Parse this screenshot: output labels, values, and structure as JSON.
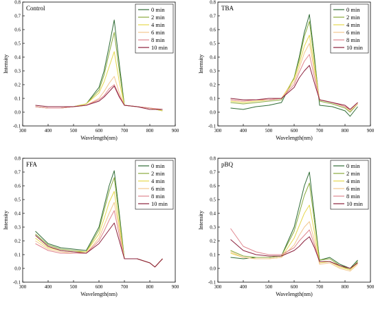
{
  "colors": {
    "0 min": "#2e6b35",
    "2 min": "#8aaa3c",
    "4 min": "#e6d84e",
    "6 min": "#f2c78e",
    "8 min": "#e0868f",
    "10 min": "#8a1e3a"
  },
  "chart_data": [
    {
      "type": "line",
      "title": "Control",
      "xlabel": "Wavelength(nm)",
      "ylabel": "Intensity",
      "xlim": [
        300,
        900
      ],
      "ylim": [
        -0.1,
        0.8
      ],
      "x_ticks": [
        300,
        400,
        500,
        600,
        700,
        800,
        900
      ],
      "y_ticks": [
        -0.1,
        0.0,
        0.1,
        0.2,
        0.3,
        0.4,
        0.5,
        0.6,
        0.7,
        0.8
      ],
      "legend_position": "top-right",
      "grid": false,
      "x": [
        350,
        400,
        450,
        500,
        550,
        600,
        620,
        640,
        660,
        680,
        700,
        750,
        800,
        850
      ],
      "series": [
        {
          "name": "0 min",
          "values": [
            0.04,
            0.03,
            0.03,
            0.04,
            0.06,
            0.18,
            0.3,
            0.48,
            0.67,
            0.35,
            0.05,
            0.04,
            0.03,
            0.01
          ]
        },
        {
          "name": "2 min",
          "values": [
            0.04,
            0.03,
            0.03,
            0.04,
            0.06,
            0.16,
            0.27,
            0.43,
            0.58,
            0.3,
            0.05,
            0.04,
            0.03,
            0.01
          ]
        },
        {
          "name": "4 min",
          "values": [
            0.04,
            0.03,
            0.03,
            0.04,
            0.06,
            0.14,
            0.22,
            0.33,
            0.44,
            0.22,
            0.05,
            0.04,
            0.03,
            0.01
          ]
        },
        {
          "name": "6 min",
          "values": [
            0.04,
            0.03,
            0.03,
            0.04,
            0.05,
            0.1,
            0.15,
            0.21,
            0.26,
            0.14,
            0.05,
            0.04,
            0.03,
            0.02
          ]
        },
        {
          "name": "8 min",
          "values": [
            0.04,
            0.03,
            0.03,
            0.04,
            0.05,
            0.09,
            0.12,
            0.17,
            0.2,
            0.12,
            0.05,
            0.04,
            0.03,
            0.02
          ]
        },
        {
          "name": "10 min",
          "values": [
            0.05,
            0.04,
            0.04,
            0.04,
            0.05,
            0.08,
            0.11,
            0.15,
            0.19,
            0.11,
            0.05,
            0.04,
            0.02,
            0.02
          ]
        }
      ]
    },
    {
      "type": "line",
      "title": "TBA",
      "xlabel": "Wavelength(nm)",
      "ylabel": "Intensity",
      "xlim": [
        300,
        900
      ],
      "ylim": [
        -0.1,
        0.8
      ],
      "x_ticks": [
        300,
        400,
        500,
        600,
        700,
        800,
        900
      ],
      "y_ticks": [
        -0.1,
        0.0,
        0.1,
        0.2,
        0.3,
        0.4,
        0.5,
        0.6,
        0.7,
        0.8
      ],
      "legend_position": "top-right",
      "grid": false,
      "x": [
        350,
        400,
        450,
        500,
        550,
        600,
        620,
        640,
        660,
        680,
        700,
        750,
        800,
        820,
        850
      ],
      "series": [
        {
          "name": "0 min",
          "values": [
            0.03,
            0.02,
            0.04,
            0.05,
            0.07,
            0.25,
            0.4,
            0.58,
            0.71,
            0.4,
            0.05,
            0.04,
            0.01,
            -0.03,
            0.04
          ]
        },
        {
          "name": "2 min",
          "values": [
            0.07,
            0.06,
            0.07,
            0.08,
            0.09,
            0.25,
            0.38,
            0.55,
            0.66,
            0.37,
            0.08,
            0.06,
            0.03,
            0.0,
            0.06
          ]
        },
        {
          "name": "4 min",
          "values": [
            0.08,
            0.07,
            0.08,
            0.09,
            0.1,
            0.24,
            0.35,
            0.48,
            0.56,
            0.32,
            0.09,
            0.07,
            0.04,
            0.01,
            0.06
          ]
        },
        {
          "name": "6 min",
          "values": [
            0.09,
            0.08,
            0.09,
            0.09,
            0.1,
            0.22,
            0.32,
            0.43,
            0.5,
            0.29,
            0.09,
            0.07,
            0.04,
            0.01,
            0.06
          ]
        },
        {
          "name": "8 min",
          "values": [
            0.09,
            0.08,
            0.09,
            0.09,
            0.1,
            0.2,
            0.29,
            0.37,
            0.42,
            0.25,
            0.09,
            0.07,
            0.04,
            0.02,
            0.07
          ]
        },
        {
          "name": "10 min",
          "values": [
            0.1,
            0.09,
            0.09,
            0.1,
            0.1,
            0.18,
            0.25,
            0.3,
            0.34,
            0.21,
            0.09,
            0.07,
            0.05,
            0.02,
            0.07
          ]
        }
      ]
    },
    {
      "type": "line",
      "title": "FFA",
      "xlabel": "Wavelength(nm)",
      "ylabel": "Intensity",
      "xlim": [
        300,
        900
      ],
      "ylim": [
        -0.1,
        0.8
      ],
      "x_ticks": [
        300,
        400,
        500,
        600,
        700,
        800,
        900
      ],
      "y_ticks": [
        -0.1,
        0.0,
        0.1,
        0.2,
        0.3,
        0.4,
        0.5,
        0.6,
        0.7,
        0.8
      ],
      "legend_position": "top-right",
      "grid": false,
      "x": [
        350,
        400,
        450,
        500,
        550,
        600,
        620,
        640,
        660,
        680,
        700,
        750,
        800,
        820,
        850
      ],
      "series": [
        {
          "name": "0 min",
          "values": [
            0.27,
            0.18,
            0.15,
            0.14,
            0.13,
            0.3,
            0.45,
            0.6,
            0.71,
            0.4,
            0.07,
            0.07,
            0.04,
            0.01,
            0.07
          ]
        },
        {
          "name": "2 min",
          "values": [
            0.25,
            0.17,
            0.14,
            0.13,
            0.12,
            0.28,
            0.42,
            0.56,
            0.66,
            0.37,
            0.07,
            0.07,
            0.04,
            0.01,
            0.07
          ]
        },
        {
          "name": "4 min",
          "values": [
            0.22,
            0.15,
            0.13,
            0.12,
            0.12,
            0.25,
            0.36,
            0.48,
            0.56,
            0.31,
            0.07,
            0.07,
            0.04,
            0.01,
            0.07
          ]
        },
        {
          "name": "6 min",
          "values": [
            0.2,
            0.14,
            0.12,
            0.11,
            0.11,
            0.22,
            0.31,
            0.4,
            0.48,
            0.28,
            0.07,
            0.07,
            0.04,
            0.01,
            0.07
          ]
        },
        {
          "name": "8 min",
          "values": [
            0.18,
            0.13,
            0.11,
            0.11,
            0.11,
            0.2,
            0.27,
            0.35,
            0.42,
            0.24,
            0.07,
            0.07,
            0.04,
            0.01,
            0.07
          ]
        },
        {
          "name": "10 min",
          "values": [
            0.24,
            0.16,
            0.13,
            0.12,
            0.11,
            0.18,
            0.23,
            0.28,
            0.33,
            0.2,
            0.07,
            0.07,
            0.04,
            0.01,
            0.07
          ]
        }
      ]
    },
    {
      "type": "line",
      "title": "pBQ",
      "xlabel": "Wavelength(nm)",
      "ylabel": "Intensity",
      "xlim": [
        300,
        900
      ],
      "ylim": [
        -0.1,
        0.8
      ],
      "x_ticks": [
        300,
        400,
        500,
        600,
        700,
        800,
        900
      ],
      "y_ticks": [
        -0.1,
        0.0,
        0.1,
        0.2,
        0.3,
        0.4,
        0.5,
        0.6,
        0.7,
        0.8
      ],
      "legend_position": "top-right",
      "grid": false,
      "x": [
        350,
        400,
        450,
        500,
        550,
        600,
        620,
        640,
        660,
        680,
        700,
        740,
        780,
        820,
        850
      ],
      "series": [
        {
          "name": "0 min",
          "values": [
            0.08,
            0.07,
            0.08,
            0.08,
            0.09,
            0.3,
            0.45,
            0.6,
            0.7,
            0.38,
            0.06,
            0.08,
            0.03,
            0.0,
            0.06
          ]
        },
        {
          "name": "2 min",
          "values": [
            0.13,
            0.09,
            0.08,
            0.08,
            0.09,
            0.27,
            0.4,
            0.53,
            0.62,
            0.34,
            0.06,
            0.07,
            0.02,
            -0.01,
            0.05
          ]
        },
        {
          "name": "4 min",
          "values": [
            0.11,
            0.08,
            0.07,
            0.07,
            0.08,
            0.22,
            0.31,
            0.4,
            0.46,
            0.26,
            0.04,
            0.05,
            0.01,
            -0.01,
            0.04
          ]
        },
        {
          "name": "6 min",
          "values": [
            0.12,
            0.08,
            0.07,
            0.07,
            0.08,
            0.17,
            0.24,
            0.3,
            0.34,
            0.2,
            0.03,
            0.04,
            0.0,
            -0.02,
            0.03
          ]
        },
        {
          "name": "8 min",
          "values": [
            0.29,
            0.16,
            0.12,
            0.1,
            0.1,
            0.15,
            0.2,
            0.24,
            0.28,
            0.17,
            0.05,
            0.05,
            0.02,
            0.0,
            0.04
          ]
        },
        {
          "name": "10 min",
          "values": [
            0.21,
            0.13,
            0.1,
            0.09,
            0.09,
            0.13,
            0.16,
            0.2,
            0.23,
            0.15,
            0.05,
            0.05,
            0.02,
            0.0,
            0.04
          ]
        }
      ]
    }
  ]
}
